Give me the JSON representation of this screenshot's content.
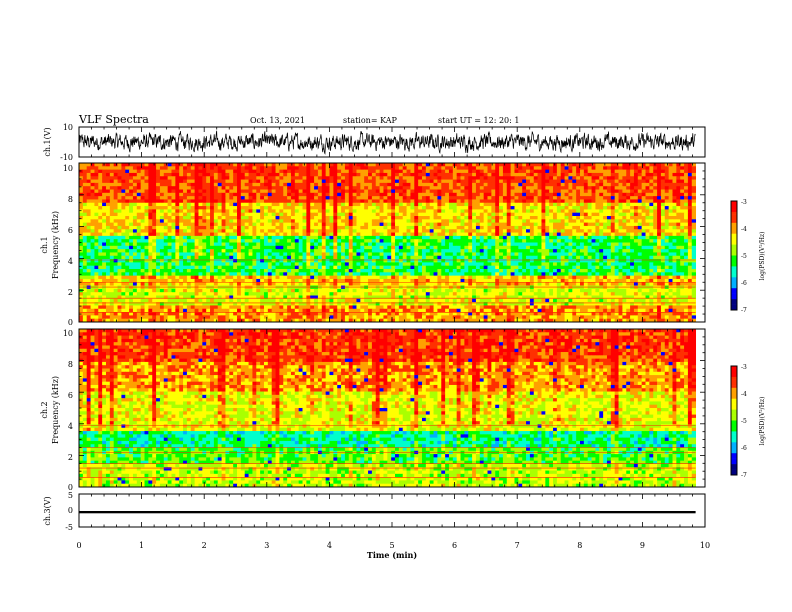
{
  "header": {
    "title": "VLF Spectra",
    "date": "Oct. 13, 2021",
    "station": "station= KAP",
    "start": "start  UT =   12: 20: 1"
  },
  "colors": {
    "spectrogram_scale": [
      "#000080",
      "#0000ff",
      "#00b0ff",
      "#00ffcc",
      "#00ff00",
      "#aaff00",
      "#ffff00",
      "#ffa000",
      "#ff3000",
      "#ff0000",
      "#ffffff"
    ],
    "trace": "#000000"
  },
  "chart_data": [
    {
      "type": "line",
      "name": "ch1-waveform",
      "ylabel": "ch.1(V)",
      "ylim": [
        -10,
        10
      ],
      "yticks": [
        "10",
        "-10"
      ],
      "xlim": [
        0,
        10
      ],
      "description_values": {
        "baseline_v": 0,
        "typical_amplitude_v": 4
      }
    },
    {
      "type": "heatmap",
      "name": "ch1-spectrogram",
      "ylabel_line1": "ch.1",
      "ylabel_line2": "Frequency  (kHz)",
      "ylim": [
        0,
        10
      ],
      "yticks": [
        "0",
        "2",
        "4",
        "6",
        "8",
        "10"
      ],
      "xlim": [
        0,
        10
      ],
      "data_end_min": 9.85,
      "colorbar": {
        "label": "log(PSD)(V²/Hz)",
        "range": [
          -7,
          -3
        ],
        "ticks": [
          "-3",
          "-4",
          "-5",
          "-6",
          "-7"
        ]
      },
      "band_levels_by_khz": [
        {
          "from": 0,
          "to": 1,
          "log_psd": -4.0
        },
        {
          "from": 1,
          "to": 2.3,
          "log_psd": -4.6
        },
        {
          "from": 2.3,
          "to": 3.0,
          "log_psd": -4.2
        },
        {
          "from": 3.0,
          "to": 5.5,
          "log_psd": -5.3
        },
        {
          "from": 5.5,
          "to": 7.5,
          "log_psd": -4.3
        },
        {
          "from": 7.5,
          "to": 10,
          "log_psd": -3.7
        }
      ]
    },
    {
      "type": "heatmap",
      "name": "ch2-spectrogram",
      "ylabel_line1": "ch.2",
      "ylabel_line2": "Frequency  (kHz)",
      "ylim": [
        0,
        10
      ],
      "yticks": [
        "0",
        "2",
        "4",
        "6",
        "8",
        "10"
      ],
      "xlim": [
        0,
        10
      ],
      "data_end_min": 9.85,
      "colorbar": {
        "label": "log(PSD)(V²/Hz)",
        "range": [
          -7,
          -3
        ],
        "ticks": [
          "-3",
          "-4",
          "-5",
          "-6",
          "-7"
        ]
      },
      "band_levels_by_khz": [
        {
          "from": 0,
          "to": 1.5,
          "log_psd": -4.7
        },
        {
          "from": 1.5,
          "to": 2.5,
          "log_psd": -5.1
        },
        {
          "from": 2.5,
          "to": 3.5,
          "log_psd": -5.5
        },
        {
          "from": 3.5,
          "to": 6.0,
          "log_psd": -4.5
        },
        {
          "from": 6.0,
          "to": 8.0,
          "log_psd": -4.0
        },
        {
          "from": 8.0,
          "to": 10,
          "log_psd": -3.6
        }
      ]
    },
    {
      "type": "line",
      "name": "ch3-waveform",
      "ylabel": "ch.3(V)",
      "ylim": [
        -5,
        5
      ],
      "yticks": [
        "5",
        "0",
        "-5"
      ],
      "xlim": [
        0,
        10
      ],
      "xlabel": "Time  (min)",
      "xticks": [
        "0",
        "1",
        "2",
        "3",
        "4",
        "5",
        "6",
        "7",
        "8",
        "9",
        "10"
      ],
      "description_values": {
        "band_center_v": -0.5,
        "band_halfwidth_v": 0.35
      }
    }
  ]
}
